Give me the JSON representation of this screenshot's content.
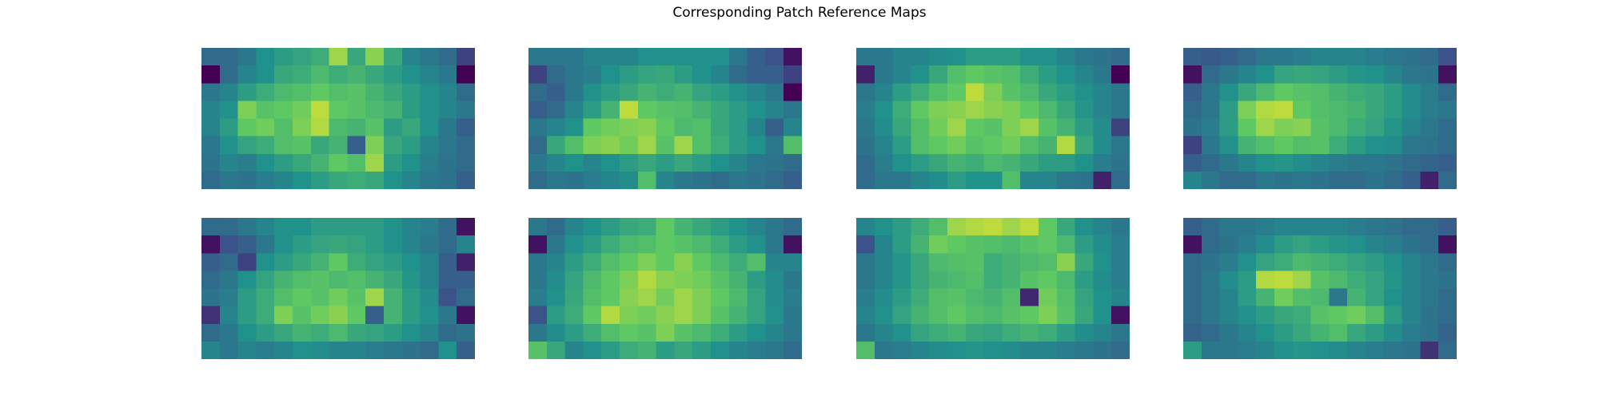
{
  "title": "Corresponding Patch Reference Maps",
  "colormap": {
    "name": "viridis",
    "stops": [
      "#440154",
      "#3b528b",
      "#21918c",
      "#5ec962",
      "#fde725"
    ]
  },
  "chart_data": {
    "type": "heatmap",
    "title": "Corresponding Patch Reference Maps",
    "layout": "2 rows x 4 columns of heatmaps",
    "axes_visible": false,
    "grid": false,
    "vrange": [
      0,
      1
    ],
    "panels": [
      {
        "rows": 8,
        "cols": 15,
        "values": [
          [
            0.35,
            0.35,
            0.4,
            0.5,
            0.55,
            0.58,
            0.62,
            0.85,
            0.6,
            0.82,
            0.6,
            0.45,
            0.4,
            0.35,
            0.2
          ],
          [
            0.0,
            0.35,
            0.45,
            0.5,
            0.6,
            0.62,
            0.68,
            0.62,
            0.65,
            0.6,
            0.55,
            0.5,
            0.45,
            0.4,
            0.0
          ],
          [
            0.4,
            0.45,
            0.55,
            0.62,
            0.68,
            0.7,
            0.75,
            0.7,
            0.72,
            0.65,
            0.6,
            0.55,
            0.5,
            0.45,
            0.35
          ],
          [
            0.45,
            0.5,
            0.8,
            0.72,
            0.75,
            0.78,
            0.9,
            0.75,
            0.72,
            0.68,
            0.65,
            0.55,
            0.5,
            0.45,
            0.4
          ],
          [
            0.45,
            0.55,
            0.75,
            0.78,
            0.7,
            0.8,
            0.88,
            0.68,
            0.65,
            0.72,
            0.55,
            0.6,
            0.5,
            0.4,
            0.3
          ],
          [
            0.4,
            0.5,
            0.58,
            0.62,
            0.7,
            0.72,
            0.6,
            0.65,
            0.3,
            0.8,
            0.6,
            0.55,
            0.45,
            0.4,
            0.35
          ],
          [
            0.38,
            0.45,
            0.42,
            0.5,
            0.55,
            0.6,
            0.65,
            0.75,
            0.7,
            0.85,
            0.55,
            0.5,
            0.42,
            0.38,
            0.35
          ],
          [
            0.35,
            0.4,
            0.38,
            0.42,
            0.45,
            0.5,
            0.55,
            0.6,
            0.62,
            0.6,
            0.5,
            0.45,
            0.4,
            0.38,
            0.3
          ]
        ]
      },
      {
        "rows": 8,
        "cols": 15,
        "values": [
          [
            0.4,
            0.4,
            0.4,
            0.45,
            0.45,
            0.45,
            0.5,
            0.5,
            0.5,
            0.5,
            0.5,
            0.4,
            0.3,
            0.25,
            0.05
          ],
          [
            0.2,
            0.35,
            0.4,
            0.42,
            0.5,
            0.55,
            0.58,
            0.6,
            0.55,
            0.5,
            0.45,
            0.35,
            0.3,
            0.3,
            0.2
          ],
          [
            0.35,
            0.3,
            0.4,
            0.5,
            0.55,
            0.6,
            0.65,
            0.62,
            0.65,
            0.58,
            0.55,
            0.5,
            0.45,
            0.4,
            0.0
          ],
          [
            0.3,
            0.35,
            0.45,
            0.55,
            0.65,
            0.9,
            0.75,
            0.72,
            0.7,
            0.65,
            0.6,
            0.55,
            0.5,
            0.45,
            0.4
          ],
          [
            0.4,
            0.45,
            0.5,
            0.75,
            0.78,
            0.8,
            0.82,
            0.75,
            0.68,
            0.7,
            0.6,
            0.55,
            0.45,
            0.3,
            0.45
          ],
          [
            0.35,
            0.6,
            0.7,
            0.8,
            0.82,
            0.78,
            0.85,
            0.72,
            0.85,
            0.7,
            0.62,
            0.55,
            0.5,
            0.4,
            0.7
          ],
          [
            0.4,
            0.45,
            0.5,
            0.45,
            0.5,
            0.55,
            0.6,
            0.55,
            0.6,
            0.55,
            0.5,
            0.45,
            0.4,
            0.38,
            0.35
          ],
          [
            0.35,
            0.4,
            0.38,
            0.42,
            0.45,
            0.48,
            0.7,
            0.45,
            0.4,
            0.38,
            0.35,
            0.4,
            0.38,
            0.35,
            0.3
          ]
        ]
      },
      {
        "rows": 8,
        "cols": 15,
        "values": [
          [
            0.4,
            0.4,
            0.45,
            0.45,
            0.48,
            0.5,
            0.55,
            0.55,
            0.55,
            0.5,
            0.5,
            0.45,
            0.4,
            0.38,
            0.35
          ],
          [
            0.1,
            0.4,
            0.45,
            0.5,
            0.6,
            0.7,
            0.75,
            0.72,
            0.7,
            0.62,
            0.55,
            0.5,
            0.45,
            0.4,
            0.0
          ],
          [
            0.4,
            0.45,
            0.55,
            0.62,
            0.7,
            0.75,
            0.9,
            0.8,
            0.72,
            0.68,
            0.6,
            0.55,
            0.5,
            0.45,
            0.4
          ],
          [
            0.42,
            0.5,
            0.62,
            0.75,
            0.8,
            0.82,
            0.85,
            0.82,
            0.8,
            0.75,
            0.68,
            0.6,
            0.52,
            0.45,
            0.4
          ],
          [
            0.4,
            0.48,
            0.6,
            0.7,
            0.78,
            0.85,
            0.75,
            0.72,
            0.8,
            0.85,
            0.72,
            0.65,
            0.55,
            0.48,
            0.2
          ],
          [
            0.38,
            0.45,
            0.55,
            0.7,
            0.75,
            0.78,
            0.72,
            0.75,
            0.78,
            0.7,
            0.65,
            0.88,
            0.6,
            0.48,
            0.4
          ],
          [
            0.35,
            0.42,
            0.5,
            0.55,
            0.6,
            0.65,
            0.62,
            0.68,
            0.65,
            0.6,
            0.55,
            0.55,
            0.5,
            0.42,
            0.38
          ],
          [
            0.35,
            0.4,
            0.4,
            0.45,
            0.48,
            0.55,
            0.5,
            0.5,
            0.7,
            0.45,
            0.45,
            0.4,
            0.38,
            0.1,
            0.35
          ]
        ]
      },
      {
        "rows": 8,
        "cols": 15,
        "values": [
          [
            0.3,
            0.28,
            0.3,
            0.35,
            0.4,
            0.4,
            0.42,
            0.45,
            0.45,
            0.45,
            0.42,
            0.4,
            0.38,
            0.35,
            0.25
          ],
          [
            0.05,
            0.35,
            0.4,
            0.45,
            0.5,
            0.58,
            0.6,
            0.58,
            0.55,
            0.52,
            0.5,
            0.45,
            0.4,
            0.38,
            0.05
          ],
          [
            0.3,
            0.4,
            0.5,
            0.6,
            0.68,
            0.75,
            0.72,
            0.7,
            0.65,
            0.62,
            0.6,
            0.55,
            0.48,
            0.42,
            0.35
          ],
          [
            0.35,
            0.4,
            0.55,
            0.8,
            0.88,
            0.9,
            0.75,
            0.7,
            0.68,
            0.65,
            0.6,
            0.55,
            0.48,
            0.42,
            0.4
          ],
          [
            0.38,
            0.42,
            0.55,
            0.75,
            0.85,
            0.8,
            0.82,
            0.72,
            0.68,
            0.62,
            0.58,
            0.52,
            0.45,
            0.4,
            0.35
          ],
          [
            0.2,
            0.4,
            0.5,
            0.65,
            0.7,
            0.75,
            0.7,
            0.72,
            0.62,
            0.55,
            0.5,
            0.48,
            0.4,
            0.38,
            0.35
          ],
          [
            0.3,
            0.35,
            0.4,
            0.45,
            0.5,
            0.52,
            0.48,
            0.45,
            0.42,
            0.4,
            0.4,
            0.38,
            0.35,
            0.32,
            0.3
          ],
          [
            0.45,
            0.4,
            0.35,
            0.35,
            0.4,
            0.38,
            0.4,
            0.38,
            0.35,
            0.35,
            0.38,
            0.35,
            0.3,
            0.1,
            0.35
          ]
        ]
      },
      {
        "rows": 8,
        "cols": 15,
        "values": [
          [
            0.35,
            0.35,
            0.4,
            0.45,
            0.5,
            0.5,
            0.55,
            0.55,
            0.55,
            0.55,
            0.5,
            0.45,
            0.42,
            0.35,
            0.05
          ],
          [
            0.05,
            0.25,
            0.3,
            0.4,
            0.5,
            0.55,
            0.58,
            0.6,
            0.58,
            0.55,
            0.5,
            0.45,
            0.4,
            0.35,
            0.45
          ],
          [
            0.3,
            0.35,
            0.2,
            0.5,
            0.55,
            0.6,
            0.65,
            0.75,
            0.62,
            0.58,
            0.55,
            0.5,
            0.45,
            0.3,
            0.1
          ],
          [
            0.35,
            0.4,
            0.5,
            0.58,
            0.65,
            0.7,
            0.72,
            0.68,
            0.7,
            0.65,
            0.6,
            0.52,
            0.45,
            0.3,
            0.3
          ],
          [
            0.38,
            0.42,
            0.55,
            0.62,
            0.7,
            0.75,
            0.72,
            0.78,
            0.72,
            0.85,
            0.65,
            0.55,
            0.48,
            0.25,
            0.35
          ],
          [
            0.15,
            0.45,
            0.55,
            0.62,
            0.8,
            0.72,
            0.78,
            0.82,
            0.75,
            0.3,
            0.65,
            0.55,
            0.5,
            0.4,
            0.05
          ],
          [
            0.35,
            0.4,
            0.5,
            0.55,
            0.6,
            0.65,
            0.62,
            0.68,
            0.6,
            0.58,
            0.55,
            0.5,
            0.45,
            0.35,
            0.38
          ],
          [
            0.45,
            0.4,
            0.45,
            0.42,
            0.45,
            0.5,
            0.48,
            0.45,
            0.45,
            0.42,
            0.4,
            0.38,
            0.35,
            0.5,
            0.3
          ]
        ]
      },
      {
        "rows": 8,
        "cols": 15,
        "values": [
          [
            0.4,
            0.35,
            0.45,
            0.5,
            0.55,
            0.6,
            0.62,
            0.75,
            0.65,
            0.6,
            0.55,
            0.5,
            0.45,
            0.4,
            0.35
          ],
          [
            0.05,
            0.4,
            0.5,
            0.55,
            0.62,
            0.68,
            0.7,
            0.75,
            0.72,
            0.68,
            0.62,
            0.55,
            0.5,
            0.4,
            0.05
          ],
          [
            0.4,
            0.45,
            0.55,
            0.62,
            0.7,
            0.75,
            0.8,
            0.75,
            0.82,
            0.75,
            0.68,
            0.62,
            0.7,
            0.45,
            0.45
          ],
          [
            0.4,
            0.48,
            0.58,
            0.68,
            0.75,
            0.8,
            0.88,
            0.82,
            0.8,
            0.78,
            0.72,
            0.65,
            0.55,
            0.48,
            0.4
          ],
          [
            0.42,
            0.5,
            0.6,
            0.7,
            0.75,
            0.82,
            0.85,
            0.78,
            0.85,
            0.8,
            0.75,
            0.68,
            0.58,
            0.48,
            0.42
          ],
          [
            0.25,
            0.55,
            0.62,
            0.75,
            0.88,
            0.8,
            0.78,
            0.82,
            0.85,
            0.8,
            0.72,
            0.65,
            0.58,
            0.5,
            0.4
          ],
          [
            0.4,
            0.48,
            0.55,
            0.62,
            0.7,
            0.75,
            0.72,
            0.8,
            0.72,
            0.68,
            0.62,
            0.55,
            0.5,
            0.45,
            0.4
          ],
          [
            0.72,
            0.6,
            0.45,
            0.5,
            0.55,
            0.62,
            0.65,
            0.55,
            0.6,
            0.55,
            0.5,
            0.45,
            0.42,
            0.4,
            0.35
          ]
        ]
      },
      {
        "rows": 8,
        "cols": 15,
        "values": [
          [
            0.45,
            0.5,
            0.55,
            0.62,
            0.7,
            0.85,
            0.88,
            0.9,
            0.85,
            0.9,
            0.75,
            0.6,
            0.5,
            0.45,
            0.4
          ],
          [
            0.25,
            0.45,
            0.55,
            0.65,
            0.78,
            0.75,
            0.72,
            0.7,
            0.68,
            0.72,
            0.75,
            0.68,
            0.55,
            0.48,
            0.42
          ],
          [
            0.4,
            0.45,
            0.52,
            0.6,
            0.68,
            0.7,
            0.72,
            0.62,
            0.65,
            0.68,
            0.7,
            0.82,
            0.6,
            0.5,
            0.42
          ],
          [
            0.4,
            0.45,
            0.52,
            0.6,
            0.65,
            0.68,
            0.7,
            0.62,
            0.65,
            0.72,
            0.75,
            0.68,
            0.55,
            0.48,
            0.42
          ],
          [
            0.42,
            0.48,
            0.55,
            0.62,
            0.7,
            0.72,
            0.68,
            0.65,
            0.7,
            0.12,
            0.78,
            0.7,
            0.58,
            0.5,
            0.45
          ],
          [
            0.45,
            0.5,
            0.58,
            0.65,
            0.7,
            0.75,
            0.7,
            0.68,
            0.72,
            0.75,
            0.8,
            0.72,
            0.6,
            0.5,
            0.05
          ],
          [
            0.4,
            0.45,
            0.5,
            0.58,
            0.62,
            0.65,
            0.6,
            0.58,
            0.62,
            0.65,
            0.62,
            0.55,
            0.48,
            0.45,
            0.4
          ],
          [
            0.7,
            0.4,
            0.42,
            0.45,
            0.48,
            0.5,
            0.52,
            0.5,
            0.48,
            0.45,
            0.45,
            0.42,
            0.4,
            0.38,
            0.35
          ]
        ]
      },
      {
        "rows": 8,
        "cols": 15,
        "values": [
          [
            0.3,
            0.35,
            0.4,
            0.4,
            0.42,
            0.45,
            0.45,
            0.45,
            0.45,
            0.42,
            0.4,
            0.38,
            0.35,
            0.35,
            0.3
          ],
          [
            0.05,
            0.35,
            0.38,
            0.42,
            0.48,
            0.55,
            0.58,
            0.55,
            0.52,
            0.5,
            0.45,
            0.42,
            0.38,
            0.35,
            0.05
          ],
          [
            0.35,
            0.38,
            0.42,
            0.5,
            0.58,
            0.62,
            0.68,
            0.65,
            0.62,
            0.58,
            0.55,
            0.5,
            0.45,
            0.4,
            0.35
          ],
          [
            0.35,
            0.4,
            0.48,
            0.55,
            0.88,
            0.9,
            0.85,
            0.72,
            0.68,
            0.62,
            0.58,
            0.52,
            0.45,
            0.4,
            0.38
          ],
          [
            0.35,
            0.4,
            0.45,
            0.55,
            0.65,
            0.78,
            0.7,
            0.68,
            0.4,
            0.65,
            0.58,
            0.5,
            0.45,
            0.4,
            0.35
          ],
          [
            0.35,
            0.4,
            0.45,
            0.5,
            0.55,
            0.6,
            0.62,
            0.72,
            0.75,
            0.78,
            0.7,
            0.55,
            0.45,
            0.38,
            0.35
          ],
          [
            0.32,
            0.35,
            0.4,
            0.45,
            0.5,
            0.55,
            0.6,
            0.65,
            0.7,
            0.6,
            0.55,
            0.48,
            0.42,
            0.38,
            0.32
          ],
          [
            0.55,
            0.4,
            0.4,
            0.42,
            0.45,
            0.5,
            0.52,
            0.5,
            0.48,
            0.45,
            0.42,
            0.4,
            0.38,
            0.15,
            0.35
          ]
        ]
      }
    ]
  }
}
